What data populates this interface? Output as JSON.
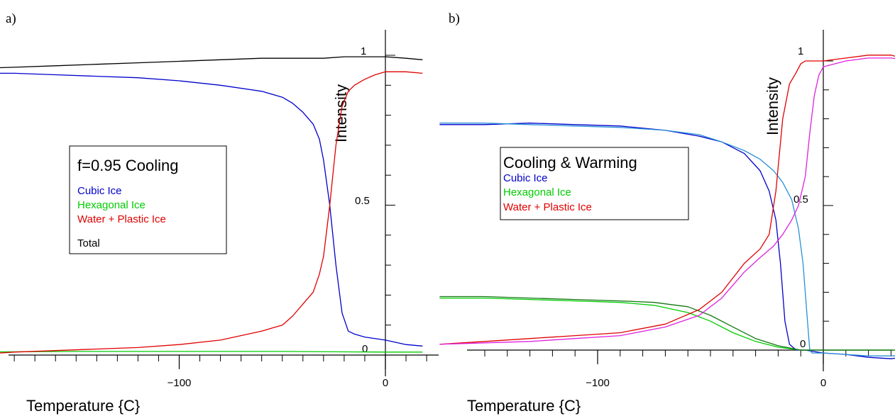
{
  "chart_data": [
    {
      "panel_label": "a)",
      "type": "line",
      "xlabel": "Temperature  {C}",
      "ylabel": "Intensity",
      "xlim": [
        -205,
        20
      ],
      "ylim": [
        -0.02,
        1.1
      ],
      "x_ticks": [
        -100,
        0
      ],
      "x_tick_labels": [
        "−100",
        "0"
      ],
      "y_ticks": [
        0,
        0.5,
        1
      ],
      "y_tick_labels": [
        "0",
        "0.5",
        "1"
      ],
      "grid": false,
      "legend": {
        "title": "f=0.95  Cooling",
        "entries": [
          "Cubic  Ice",
          "Hexagonal  Ice",
          "Water  +  Plastic Ice",
          "Total"
        ],
        "placement": "left-middle"
      },
      "series": [
        {
          "name": "Cubic  Ice",
          "color": "#0000cc",
          "x": [
            -203,
            -180,
            -160,
            -140,
            -120,
            -100,
            -80,
            -60,
            -50,
            -45,
            -40,
            -35,
            -32,
            -30,
            -27,
            -24,
            -21,
            -18,
            -15,
            -10,
            0,
            10,
            18
          ],
          "y": [
            0.94,
            0.94,
            0.935,
            0.93,
            0.925,
            0.915,
            0.9,
            0.88,
            0.86,
            0.84,
            0.81,
            0.77,
            0.72,
            0.65,
            0.5,
            0.3,
            0.14,
            0.08,
            0.07,
            0.06,
            0.05,
            0.035,
            0.03
          ]
        },
        {
          "name": "Hexagonal  Ice",
          "color": "#00cc00",
          "x": [
            -203,
            -150,
            -100,
            -50,
            0,
            18
          ],
          "y": [
            0.01,
            0.012,
            0.012,
            0.012,
            0.01,
            0.01
          ]
        },
        {
          "name": "Water  +  Plastic Ice",
          "color": "#e00000",
          "x": [
            -203,
            -180,
            -160,
            -140,
            -120,
            -100,
            -80,
            -60,
            -50,
            -45,
            -40,
            -35,
            -32,
            -30,
            -27,
            -24,
            -21,
            -18,
            -15,
            -10,
            -5,
            0,
            10,
            18
          ],
          "y": [
            0.0,
            0.01,
            0.015,
            0.02,
            0.025,
            0.035,
            0.05,
            0.08,
            0.1,
            0.13,
            0.17,
            0.21,
            0.27,
            0.33,
            0.5,
            0.7,
            0.83,
            0.88,
            0.9,
            0.92,
            0.935,
            0.945,
            0.945,
            0.94
          ]
        },
        {
          "name": "Total",
          "color": "#000000",
          "x": [
            -203,
            -180,
            -160,
            -140,
            -120,
            -100,
            -80,
            -60,
            -40,
            -30,
            -20,
            -10,
            0,
            10,
            18
          ],
          "y": [
            0.955,
            0.96,
            0.965,
            0.97,
            0.975,
            0.98,
            0.985,
            0.99,
            0.99,
            0.99,
            0.995,
            0.995,
            0.995,
            0.99,
            0.985
          ]
        }
      ]
    },
    {
      "panel_label": "b)",
      "type": "line",
      "xlabel": "Temperature  {C}",
      "ylabel": "Intensity",
      "xlim": [
        -172,
        40
      ],
      "ylim": [
        -0.06,
        1.1
      ],
      "x_ticks": [
        -100,
        0
      ],
      "x_tick_labels": [
        "−100",
        "0"
      ],
      "y_ticks": [
        0,
        0.5,
        1
      ],
      "y_tick_labels": [
        "0",
        "0.5",
        "1"
      ],
      "grid": false,
      "legend": {
        "title": "Cooling  &  Warming",
        "entries": [
          "Cubic  Ice",
          "Hexagonal  Ice",
          "Water  +  Plastic Ice"
        ],
        "placement": "left-middle"
      },
      "series": [
        {
          "name": "Cubic  Ice",
          "color": "#0000cc",
          "x": [
            -170,
            -150,
            -130,
            -110,
            -90,
            -70,
            -55,
            -45,
            -35,
            -28,
            -24,
            -21,
            -19,
            -17,
            -15,
            -12,
            -8,
            0,
            10,
            20,
            30,
            40
          ],
          "y": [
            0.78,
            0.78,
            0.785,
            0.78,
            0.775,
            0.76,
            0.74,
            0.72,
            0.68,
            0.62,
            0.55,
            0.45,
            0.3,
            0.1,
            0.02,
            0.0,
            0.0,
            -0.01,
            -0.015,
            -0.025,
            -0.03,
            -0.02
          ]
        },
        {
          "color": "#2a8fd8",
          "x": [
            -170,
            -150,
            -130,
            -110,
            -90,
            -70,
            -55,
            -45,
            -35,
            -28,
            -22,
            -18,
            -14,
            -11,
            -9,
            -7,
            -6,
            -5,
            0,
            10,
            20,
            40
          ],
          "y": [
            0.785,
            0.785,
            0.78,
            0.775,
            0.77,
            0.76,
            0.745,
            0.72,
            0.69,
            0.66,
            0.62,
            0.58,
            0.52,
            0.42,
            0.3,
            0.1,
            0.0,
            -0.01,
            -0.01,
            -0.015,
            -0.02,
            -0.02
          ]
        },
        {
          "name": "Hexagonal  Ice",
          "color": "#00cc00",
          "x": [
            -170,
            -150,
            -130,
            -110,
            -90,
            -75,
            -60,
            -50,
            -40,
            -30,
            -20,
            -10,
            0,
            20,
            40
          ],
          "y": [
            0.18,
            0.18,
            0.175,
            0.17,
            0.165,
            0.155,
            0.13,
            0.1,
            0.06,
            0.03,
            0.01,
            0.0,
            0.0,
            0.0,
            0.0
          ]
        },
        {
          "color": "#117711",
          "x": [
            -170,
            -150,
            -130,
            -110,
            -90,
            -75,
            -60,
            -50,
            -40,
            -30,
            -20,
            -10,
            0,
            20,
            40
          ],
          "y": [
            0.185,
            0.185,
            0.18,
            0.175,
            0.17,
            0.165,
            0.15,
            0.12,
            0.08,
            0.04,
            0.015,
            0.0,
            0.0,
            0.0,
            0.0
          ]
        },
        {
          "name": "Water  +  Plastic Ice",
          "color": "#e00000",
          "x": [
            -170,
            -150,
            -130,
            -110,
            -90,
            -70,
            -55,
            -45,
            -35,
            -28,
            -24,
            -21,
            -18,
            -15,
            -12,
            -10,
            -8,
            -5,
            0,
            10,
            20,
            30,
            40
          ],
          "y": [
            0.02,
            0.03,
            0.04,
            0.05,
            0.06,
            0.09,
            0.14,
            0.2,
            0.3,
            0.35,
            0.4,
            0.55,
            0.8,
            0.92,
            0.96,
            0.99,
            1.0,
            1.0,
            1.0,
            1.01,
            1.02,
            1.02,
            1.0
          ]
        },
        {
          "color": "#dd22dd",
          "x": [
            -170,
            -150,
            -130,
            -110,
            -90,
            -70,
            -55,
            -45,
            -35,
            -28,
            -22,
            -18,
            -14,
            -11,
            -8,
            -6,
            -4,
            -2,
            0,
            10,
            20,
            30,
            40
          ],
          "y": [
            0.02,
            0.025,
            0.03,
            0.04,
            0.05,
            0.08,
            0.12,
            0.18,
            0.27,
            0.32,
            0.36,
            0.4,
            0.45,
            0.5,
            0.6,
            0.75,
            0.88,
            0.95,
            0.98,
            1.0,
            1.01,
            1.01,
            1.0
          ]
        }
      ]
    }
  ]
}
